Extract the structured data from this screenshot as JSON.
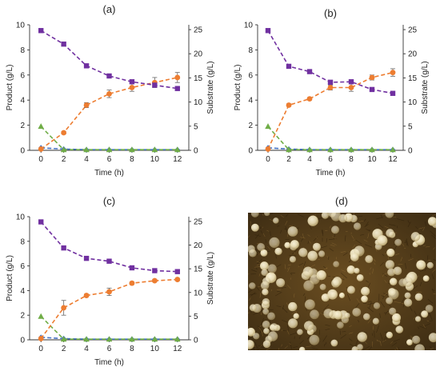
{
  "colors": {
    "purple": "#7030a0",
    "orange": "#ed7d31",
    "green": "#70ad47",
    "blue": "#4472c4",
    "photo_background": "#3a2a12",
    "photo_bead": "#e8dcb5"
  },
  "photo_panel": {
    "label": "(d)",
    "content": "photo"
  },
  "chart_data": [
    {
      "id": "a",
      "type": "line",
      "panel_label": "(a)",
      "xlabel": "Time (h)",
      "ylabel": "Product (g/L)",
      "y2label": "Substrate (g/L)",
      "xlim": [
        -1,
        13
      ],
      "ylim": [
        0,
        10
      ],
      "y2lim": [
        0,
        26
      ],
      "xticks": [
        0,
        2,
        4,
        6,
        8,
        10,
        12
      ],
      "yticks": [
        0,
        2,
        4,
        6,
        8,
        10
      ],
      "y2ticks": [
        0,
        5,
        10,
        15,
        20,
        25
      ],
      "x": [
        0,
        2,
        4,
        6,
        8,
        10,
        12
      ],
      "series": [
        {
          "axis": "y2",
          "marker": "square",
          "color": "#7030a0",
          "values": [
            24.8,
            22.0,
            17.5,
            15.4,
            14.2,
            13.5,
            12.8
          ]
        },
        {
          "axis": "y",
          "marker": "circle",
          "color": "#ed7d31",
          "values": [
            0.1,
            1.4,
            3.6,
            4.5,
            5.0,
            5.4,
            5.8
          ],
          "errors": [
            0,
            0.1,
            0.2,
            0.3,
            0.3,
            0.4,
            0.4
          ]
        },
        {
          "axis": "y",
          "marker": "triangle",
          "color": "#70ad47",
          "values": [
            1.9,
            0.05,
            0.05,
            0.05,
            0.05,
            0.05,
            0.05
          ]
        },
        {
          "axis": "y",
          "marker": "diamond",
          "color": "#4472c4",
          "values": [
            0.2,
            0.1,
            0.05,
            0.05,
            0.05,
            0.05,
            0.05
          ]
        }
      ]
    },
    {
      "id": "b",
      "type": "line",
      "panel_label": "(b)",
      "xlabel": "Time (h)",
      "ylabel": "Product (g/L)",
      "y2label": "Substrate (g/L)",
      "xlim": [
        -1,
        13
      ],
      "ylim": [
        0,
        10
      ],
      "y2lim": [
        0,
        26
      ],
      "xticks": [
        0,
        2,
        4,
        6,
        8,
        10,
        12
      ],
      "yticks": [
        0,
        2,
        4,
        6,
        8,
        10
      ],
      "y2ticks": [
        0,
        5,
        10,
        15,
        20,
        25
      ],
      "x": [
        0,
        2,
        4,
        6,
        8,
        10,
        12
      ],
      "series": [
        {
          "axis": "y2",
          "marker": "square",
          "color": "#7030a0",
          "values": [
            24.8,
            17.4,
            16.3,
            14.1,
            14.2,
            12.6,
            11.8
          ]
        },
        {
          "axis": "y",
          "marker": "circle",
          "color": "#ed7d31",
          "values": [
            0.1,
            3.6,
            4.1,
            5.0,
            5.0,
            5.8,
            6.2
          ],
          "errors": [
            0,
            0.1,
            0.1,
            0.2,
            0.3,
            0.2,
            0.3
          ]
        },
        {
          "axis": "y",
          "marker": "triangle",
          "color": "#70ad47",
          "values": [
            1.9,
            0.05,
            0.05,
            0.05,
            0.05,
            0.05,
            0.05
          ]
        },
        {
          "axis": "y",
          "marker": "diamond",
          "color": "#4472c4",
          "values": [
            0.2,
            0.1,
            0.05,
            0.05,
            0.05,
            0.05,
            0.05
          ]
        }
      ]
    },
    {
      "id": "c",
      "type": "line",
      "panel_label": "(c)",
      "xlabel": "Time (h)",
      "ylabel": "Product (g/L)",
      "y2label": "Substrate (g/L)",
      "xlim": [
        -1,
        13
      ],
      "ylim": [
        0,
        10
      ],
      "y2lim": [
        0,
        26
      ],
      "xticks": [
        0,
        2,
        4,
        6,
        8,
        10,
        12
      ],
      "yticks": [
        0,
        2,
        4,
        6,
        8,
        10
      ],
      "y2ticks": [
        0,
        5,
        10,
        15,
        20,
        25
      ],
      "x": [
        0,
        2,
        4,
        6,
        8,
        10,
        12
      ],
      "series": [
        {
          "axis": "y2",
          "marker": "square",
          "color": "#7030a0",
          "values": [
            24.9,
            19.4,
            17.2,
            16.6,
            15.2,
            14.6,
            14.4
          ]
        },
        {
          "axis": "y",
          "marker": "circle",
          "color": "#ed7d31",
          "values": [
            0.1,
            2.6,
            3.6,
            3.9,
            4.6,
            4.8,
            4.9
          ],
          "errors": [
            0,
            0.6,
            0.1,
            0.3,
            0.1,
            0.1,
            0.1
          ]
        },
        {
          "axis": "y",
          "marker": "triangle",
          "color": "#70ad47",
          "values": [
            1.9,
            0.05,
            0.05,
            0.05,
            0.05,
            0.05,
            0.05
          ]
        },
        {
          "axis": "y",
          "marker": "diamond",
          "color": "#4472c4",
          "values": [
            0.2,
            0.1,
            0.05,
            0.05,
            0.05,
            0.05,
            0.05
          ]
        }
      ]
    }
  ]
}
